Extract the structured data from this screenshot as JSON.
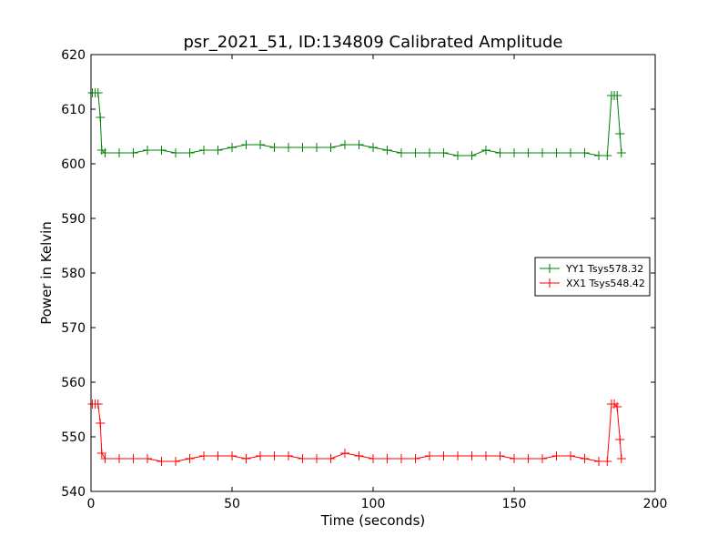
{
  "chart_data": {
    "type": "line",
    "title": "psr_2021_51, ID:134809 Calibrated Amplitude",
    "xlabel": "Time (seconds)",
    "ylabel": "Power in Kelvin",
    "xlim": [
      0,
      200
    ],
    "ylim": [
      540,
      620
    ],
    "xticks": [
      0,
      50,
      100,
      150,
      200
    ],
    "yticks": [
      540,
      550,
      560,
      570,
      580,
      590,
      600,
      610,
      620
    ],
    "grid": false,
    "marker": "+",
    "legend_position": "center-right",
    "series": [
      {
        "name": "YY1 Tsys578.32",
        "color": "#008000",
        "x": [
          0.5,
          1.5,
          2.5,
          3.3,
          3.8,
          5,
          10,
          15,
          20,
          25,
          30,
          35,
          40,
          45,
          50,
          55,
          60,
          65,
          70,
          75,
          80,
          85,
          90,
          95,
          100,
          105,
          110,
          115,
          120,
          125,
          130,
          135,
          140,
          145,
          150,
          155,
          160,
          165,
          170,
          175,
          180,
          183,
          184.5,
          185.5,
          186.5,
          187.5,
          188
        ],
        "y": [
          613,
          613,
          613,
          608.5,
          602.5,
          602,
          602,
          602,
          602.5,
          602.5,
          602,
          602,
          602.5,
          602.5,
          603,
          603.5,
          603.5,
          603,
          603,
          603,
          603,
          603,
          603.5,
          603.5,
          603,
          602.5,
          602,
          602,
          602,
          602,
          601.5,
          601.5,
          602.5,
          602,
          602,
          602,
          602,
          602,
          602,
          602,
          601.5,
          601.5,
          612.5,
          612.5,
          612.5,
          605.5,
          602
        ]
      },
      {
        "name": "XX1 Tsys548.42",
        "color": "#ff0000",
        "x": [
          0.5,
          1.5,
          2.5,
          3.3,
          3.8,
          5,
          10,
          15,
          20,
          25,
          30,
          35,
          40,
          45,
          50,
          55,
          60,
          65,
          70,
          75,
          80,
          85,
          90,
          95,
          100,
          105,
          110,
          115,
          120,
          125,
          130,
          135,
          140,
          145,
          150,
          155,
          160,
          165,
          170,
          175,
          180,
          183,
          184.5,
          185.5,
          186.5,
          187.5,
          188
        ],
        "y": [
          556,
          556,
          556,
          552.5,
          547,
          546,
          546,
          546,
          546,
          545.5,
          545.5,
          546,
          546.5,
          546.5,
          546.5,
          546,
          546.5,
          546.5,
          546.5,
          546,
          546,
          546,
          547,
          546.5,
          546,
          546,
          546,
          546,
          546.5,
          546.5,
          546.5,
          546.5,
          546.5,
          546.5,
          546,
          546,
          546,
          546.5,
          546.5,
          546,
          545.5,
          545.5,
          556,
          556,
          555.5,
          549.5,
          546
        ]
      }
    ]
  }
}
